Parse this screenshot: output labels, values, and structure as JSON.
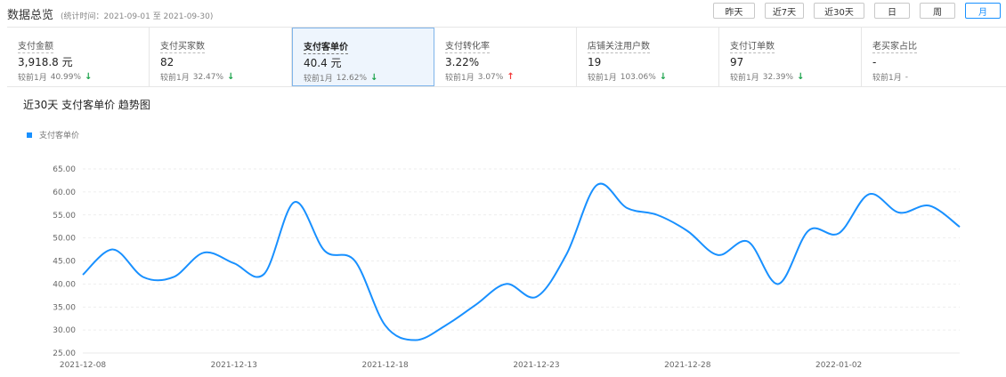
{
  "header": {
    "title": "数据总览",
    "period": "(统计时间：2021-09-01 至 2021-09-30)"
  },
  "range_buttons": [
    {
      "label": "昨天"
    },
    {
      "label": "近7天"
    },
    {
      "label": "近30天"
    },
    {
      "label": "日"
    },
    {
      "label": "周"
    },
    {
      "label": "月"
    }
  ],
  "kpis": [
    {
      "label": "支付金额",
      "value": "3,918.8 元",
      "compare_label": "较前1月",
      "compare_value": "40.99%",
      "trend": "down"
    },
    {
      "label": "支付买家数",
      "value": "82",
      "compare_label": "较前1月",
      "compare_value": "32.47%",
      "trend": "down"
    },
    {
      "label": "支付客单价",
      "value": "40.4 元",
      "compare_label": "较前1月",
      "compare_value": "12.62%",
      "trend": "down"
    },
    {
      "label": "支付转化率",
      "value": "3.22%",
      "compare_label": "较前1月",
      "compare_value": "3.07%",
      "trend": "up"
    },
    {
      "label": "店铺关注用户数",
      "value": "19",
      "compare_label": "较前1月",
      "compare_value": "103.06%",
      "trend": "down"
    },
    {
      "label": "支付订单数",
      "value": "97",
      "compare_label": "较前1月",
      "compare_value": "32.39%",
      "trend": "down"
    },
    {
      "label": "老买家占比",
      "value": "-",
      "compare_label": "较前1月",
      "compare_value": "-",
      "trend": "none"
    }
  ],
  "active_kpi": "支付客单价",
  "trend_icons": {
    "down": "↓",
    "up": "↑"
  },
  "colors": {
    "accent": "#1890ff",
    "down": "#1aa34a",
    "up": "#f23a3a",
    "grid": "#e8e8e8"
  },
  "chart_title": "近30天 支付客单价 趋势图",
  "chart_data": {
    "type": "line",
    "title": "近30天 支付客单价 趋势图",
    "legend": "top-left",
    "series": [
      {
        "name": "支付客单价",
        "x": [
          "2021-12-08",
          "2021-12-09",
          "2021-12-10",
          "2021-12-11",
          "2021-12-12",
          "2021-12-13",
          "2021-12-14",
          "2021-12-15",
          "2021-12-16",
          "2021-12-17",
          "2021-12-18",
          "2021-12-19",
          "2021-12-20",
          "2021-12-21",
          "2021-12-22",
          "2021-12-23",
          "2021-12-24",
          "2021-12-25",
          "2021-12-26",
          "2021-12-27",
          "2021-12-28",
          "2021-12-29",
          "2021-12-30",
          "2021-12-31",
          "2022-01-01",
          "2022-01-02",
          "2022-01-03",
          "2022-01-04",
          "2022-01-05",
          "2022-01-06"
        ],
        "values": [
          42.0,
          47.5,
          41.5,
          41.5,
          46.8,
          44.5,
          42.2,
          57.8,
          47.2,
          45.0,
          31.0,
          27.8,
          31.0,
          35.5,
          40.0,
          37.2,
          46.5,
          61.5,
          56.5,
          55.0,
          51.5,
          46.3,
          49.2,
          40.0,
          51.6,
          51.0,
          59.5,
          55.5,
          57.0,
          52.4
        ]
      }
    ],
    "x_tick_labels": [
      "2021-12-08",
      "2021-12-13",
      "2021-12-18",
      "2021-12-23",
      "2021-12-28",
      "2022-01-02"
    ],
    "y_tick_labels": [
      "25.00",
      "30.00",
      "35.00",
      "40.00",
      "45.00",
      "50.00",
      "55.00",
      "60.00",
      "65.00"
    ],
    "ylim": [
      25,
      65
    ],
    "grid": true
  }
}
